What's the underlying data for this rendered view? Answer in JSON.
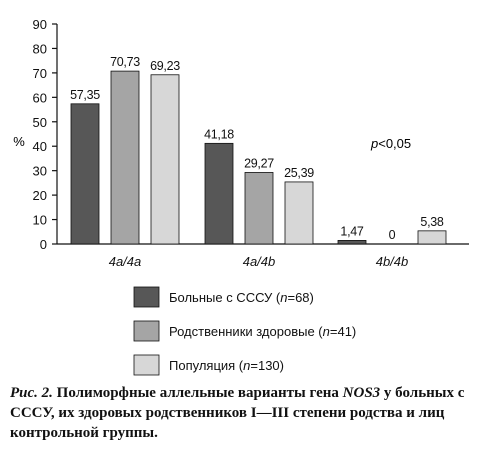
{
  "chart_data": {
    "type": "bar",
    "ylabel": "%",
    "ylim": [
      0,
      90
    ],
    "yticks": [
      0,
      10,
      20,
      30,
      40,
      50,
      60,
      70,
      80,
      90
    ],
    "categories": [
      "4a/4a",
      "4a/4b",
      "4b/4b"
    ],
    "series": [
      {
        "name_prefix": "Больные с СССУ (",
        "name_n": "n",
        "name_suffix": "=68)",
        "color": "#575757",
        "values": [
          57.35,
          41.18,
          1.47
        ],
        "labels": [
          "57,35",
          "41,18",
          "1,47"
        ]
      },
      {
        "name_prefix": "Родственники здоровые (",
        "name_n": "n",
        "name_suffix": "=41)",
        "color": "#a5a5a5",
        "values": [
          70.73,
          29.27,
          0
        ],
        "labels": [
          "70,73",
          "29,27",
          "0"
        ]
      },
      {
        "name_prefix": "Популяция (",
        "name_n": "n",
        "name_suffix": "=130)",
        "color": "#d7d7d7",
        "values": [
          69.23,
          25.39,
          5.38
        ],
        "labels": [
          "69,23",
          "25,39",
          "5,38"
        ]
      }
    ],
    "annotation_p": "p",
    "annotation_rest": "<0,05",
    "grid": false,
    "legend_position": "bottom"
  },
  "caption": {
    "fig": "Рис. 2.",
    "text_before_gene": " Полиморфные аллельные варианты гена ",
    "gene": "NOS3",
    "text_after_gene": " у больных с СССУ, их здоровых родственников I—III степени родства и лиц контрольной группы."
  }
}
